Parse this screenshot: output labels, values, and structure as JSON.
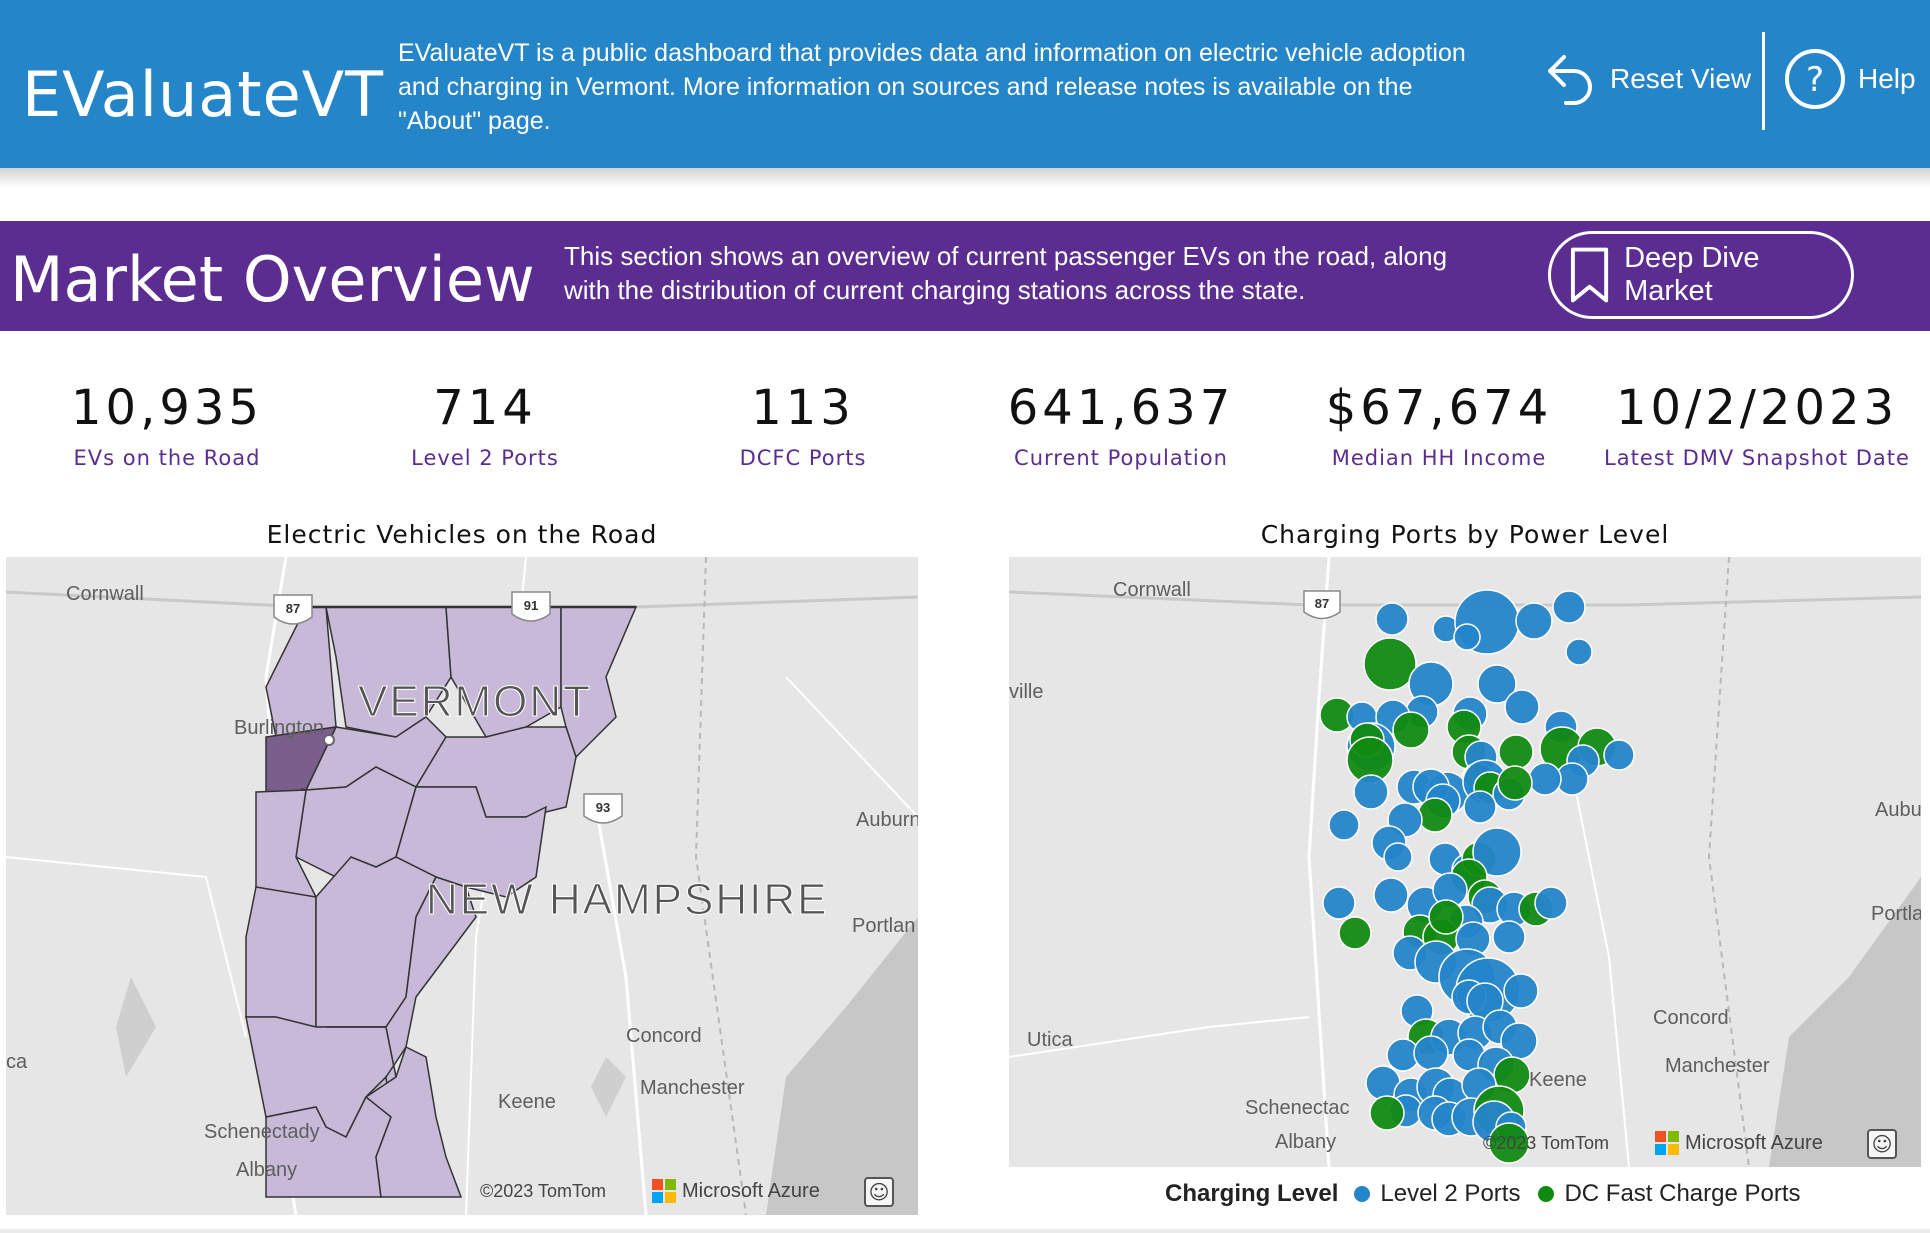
{
  "header": {
    "app_title": "EValuateVT",
    "intro": "EValuateVT is a public dashboard that provides data and information on electric vehicle adoption and charging in Vermont. More information on sources and release notes is available on the \"About\" page.",
    "reset_label": "Reset View",
    "help_label": "Help",
    "reset_icon": "undo-arrow-icon",
    "help_icon": "question-circle-icon"
  },
  "section": {
    "title": "Market Overview",
    "description": "This section shows an overview of current passenger EVs on the road, along with the distribution of current charging stations across the state.",
    "deep_dive_label": "Deep Dive Market",
    "deep_dive_icon": "bookmark-icon"
  },
  "kpis": [
    {
      "value": "10,935",
      "label": "EVs on the Road"
    },
    {
      "value": "714",
      "label": "Level 2 Ports"
    },
    {
      "value": "113",
      "label": "DCFC Ports"
    },
    {
      "value": "641,637",
      "label": "Current Population"
    },
    {
      "value": "$67,674",
      "label": "Median HH Income"
    },
    {
      "value": "10/2/2023",
      "label": "Latest DMV Snapshot Date"
    }
  ],
  "map_left": {
    "title": "Electric Vehicles on the Road",
    "labels": {
      "cornwall": "Cornwall",
      "burlington": "Burlington",
      "vermont": "VERMONT",
      "new_hampshire": "NEW HAMPSHIRE",
      "auburn": "Auburn",
      "portland": "Portlan",
      "concord": "Concord",
      "manchester": "Manchester",
      "keene": "Keene",
      "schenectady": "Schenectady",
      "albany": "Albany",
      "ca": "ca",
      "i87": "87",
      "i91": "91",
      "i93": "93"
    },
    "copyright": "©2023 TomTom",
    "provider": "Microsoft Azure"
  },
  "map_right": {
    "title": "Charging Ports by Power Level",
    "labels": {
      "cornwall": "Cornwall",
      "ville": "ville",
      "auburn": "Aubu",
      "portland": "Portla",
      "concord": "Concord",
      "manchester": "Manchester",
      "keene": "Keene",
      "utica": "Utica",
      "schenectady": "Schenectac",
      "albany": "Albany",
      "i87": "87"
    },
    "copyright": "©2023 TomTom",
    "provider": "Microsoft Azure",
    "legend_title": "Charging Level",
    "legend": [
      {
        "name": "Level 2 Ports",
        "color": "#2585C9"
      },
      {
        "name": "DC Fast Charge Ports",
        "color": "#118A11"
      }
    ]
  },
  "colors": {
    "header_blue": "#2585C9",
    "section_purple": "#5B2D91",
    "county_fill": "#C8B9D8",
    "county_dark": "#7A5F8C",
    "level2": "#2585C9",
    "dcfc": "#118A11"
  }
}
